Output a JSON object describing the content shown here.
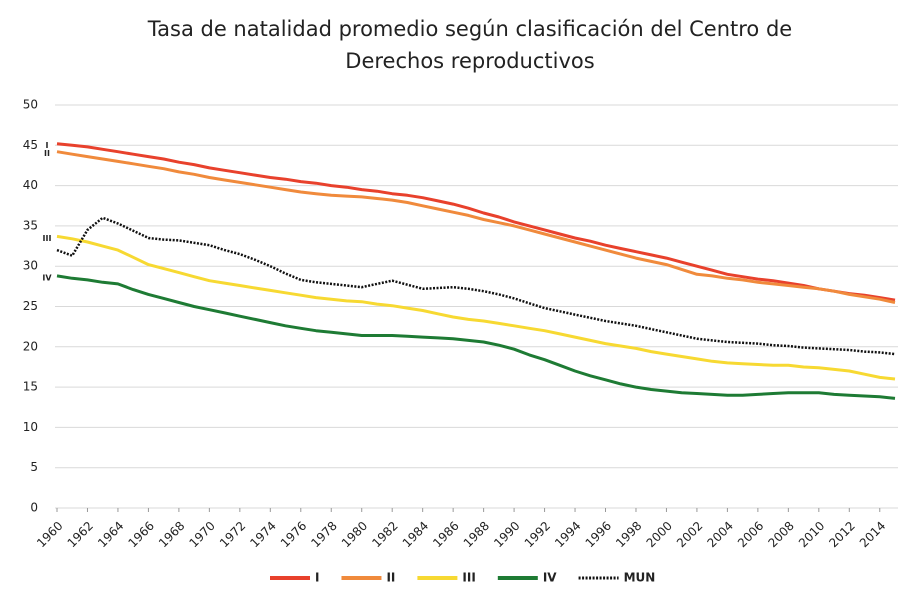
{
  "chart_data": {
    "type": "line",
    "title_lines": [
      "Tasa de natalidad promedio según clasificación del Centro de",
      "Derechos reproductivos"
    ],
    "x": [
      1960,
      1961,
      1962,
      1963,
      1964,
      1965,
      1966,
      1967,
      1968,
      1969,
      1970,
      1971,
      1972,
      1973,
      1974,
      1975,
      1976,
      1977,
      1978,
      1979,
      1980,
      1981,
      1982,
      1983,
      1984,
      1985,
      1986,
      1987,
      1988,
      1989,
      1990,
      1991,
      1992,
      1993,
      1994,
      1995,
      1996,
      1997,
      1998,
      1999,
      2000,
      2001,
      2002,
      2003,
      2004,
      2005,
      2006,
      2007,
      2008,
      2009,
      2010,
      2011,
      2012,
      2013,
      2014,
      2015
    ],
    "xlim": [
      1960,
      2015
    ],
    "xticks": [
      1960,
      1962,
      1964,
      1966,
      1968,
      1970,
      1972,
      1974,
      1976,
      1978,
      1980,
      1982,
      1984,
      1986,
      1988,
      1990,
      1992,
      1994,
      1996,
      1998,
      2000,
      2002,
      2004,
      2006,
      2008,
      2010,
      2012,
      2014
    ],
    "ylim": [
      0,
      50
    ],
    "yticks": [
      0,
      5,
      10,
      15,
      20,
      25,
      30,
      35,
      40,
      45,
      50
    ],
    "grid": true,
    "legend": "bottom",
    "annotations": [
      "I",
      "II",
      "III",
      "IV"
    ],
    "series": [
      {
        "name": "I",
        "color": "#e8412c",
        "dash": "solid",
        "values": [
          45.2,
          45.0,
          44.8,
          44.5,
          44.2,
          43.9,
          43.6,
          43.3,
          42.9,
          42.6,
          42.2,
          41.9,
          41.6,
          41.3,
          41.0,
          40.8,
          40.5,
          40.3,
          40.0,
          39.8,
          39.5,
          39.3,
          39.0,
          38.8,
          38.5,
          38.1,
          37.7,
          37.2,
          36.6,
          36.1,
          35.5,
          35.0,
          34.5,
          34.0,
          33.5,
          33.1,
          32.6,
          32.2,
          31.8,
          31.4,
          31.0,
          30.5,
          30.0,
          29.5,
          29.0,
          28.7,
          28.4,
          28.2,
          27.9,
          27.6,
          27.2,
          26.9,
          26.6,
          26.4,
          26.1,
          25.8
        ]
      },
      {
        "name": "II",
        "color": "#f08a3c",
        "dash": "solid",
        "values": [
          44.2,
          43.9,
          43.6,
          43.3,
          43.0,
          42.7,
          42.4,
          42.1,
          41.7,
          41.4,
          41.0,
          40.7,
          40.4,
          40.1,
          39.8,
          39.5,
          39.2,
          39.0,
          38.8,
          38.7,
          38.6,
          38.4,
          38.2,
          37.9,
          37.5,
          37.1,
          36.7,
          36.3,
          35.8,
          35.4,
          35.0,
          34.5,
          34.0,
          33.5,
          33.0,
          32.5,
          32.0,
          31.5,
          31.0,
          30.6,
          30.2,
          29.6,
          29.0,
          28.8,
          28.5,
          28.3,
          28.0,
          27.8,
          27.6,
          27.4,
          27.2,
          26.9,
          26.5,
          26.2,
          25.9,
          25.5
        ]
      },
      {
        "name": "III",
        "color": "#f7d932",
        "dash": "solid",
        "values": [
          33.7,
          33.4,
          33.0,
          32.5,
          32.0,
          31.1,
          30.2,
          29.7,
          29.2,
          28.7,
          28.2,
          27.9,
          27.6,
          27.3,
          27.0,
          26.7,
          26.4,
          26.1,
          25.9,
          25.7,
          25.6,
          25.3,
          25.1,
          24.8,
          24.5,
          24.1,
          23.7,
          23.4,
          23.2,
          22.9,
          22.6,
          22.3,
          22.0,
          21.6,
          21.2,
          20.8,
          20.4,
          20.1,
          19.8,
          19.4,
          19.1,
          18.8,
          18.5,
          18.2,
          18.0,
          17.9,
          17.8,
          17.7,
          17.7,
          17.5,
          17.4,
          17.2,
          17.0,
          16.6,
          16.2,
          16.0
        ]
      },
      {
        "name": "IV",
        "color": "#1e7b34",
        "dash": "solid",
        "values": [
          28.8,
          28.5,
          28.3,
          28.0,
          27.8,
          27.1,
          26.5,
          26.0,
          25.5,
          25.0,
          24.6,
          24.2,
          23.8,
          23.4,
          23.0,
          22.6,
          22.3,
          22.0,
          21.8,
          21.6,
          21.4,
          21.4,
          21.4,
          21.3,
          21.2,
          21.1,
          21.0,
          20.8,
          20.6,
          20.2,
          19.7,
          19.0,
          18.4,
          17.7,
          17.0,
          16.4,
          15.9,
          15.4,
          15.0,
          14.7,
          14.5,
          14.3,
          14.2,
          14.1,
          14.0,
          14.0,
          14.1,
          14.2,
          14.3,
          14.3,
          14.3,
          14.1,
          14.0,
          13.9,
          13.8,
          13.6
        ]
      },
      {
        "name": "MUN",
        "color": "#111111",
        "dash": "dotted",
        "values": [
          32.0,
          31.3,
          34.5,
          36.0,
          35.3,
          34.4,
          33.5,
          33.3,
          33.2,
          32.9,
          32.6,
          32.0,
          31.5,
          30.8,
          30.0,
          29.1,
          28.3,
          28.0,
          27.8,
          27.6,
          27.4,
          27.8,
          28.2,
          27.7,
          27.2,
          27.3,
          27.4,
          27.2,
          26.9,
          26.5,
          26.0,
          25.4,
          24.8,
          24.4,
          24.0,
          23.6,
          23.2,
          22.9,
          22.6,
          22.2,
          21.8,
          21.4,
          21.0,
          20.8,
          20.6,
          20.5,
          20.4,
          20.2,
          20.1,
          19.9,
          19.8,
          19.7,
          19.6,
          19.4,
          19.3,
          19.1
        ]
      }
    ]
  }
}
